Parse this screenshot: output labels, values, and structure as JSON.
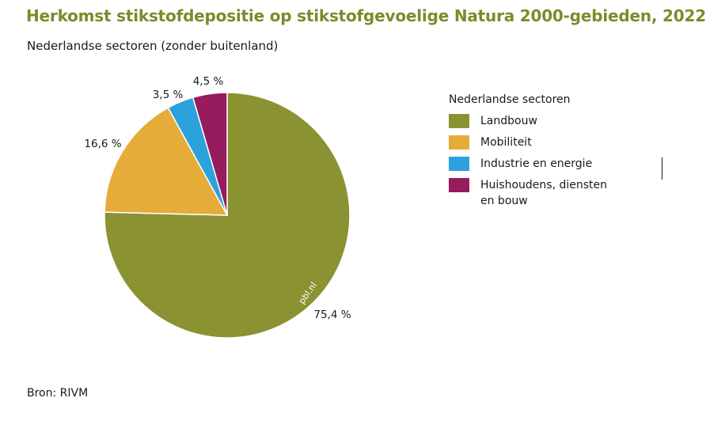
{
  "title": "Herkomst stikstofdepositie op stikstofgevoelige Natura 2000-gebieden, 2022",
  "subtitle": "Nederlandse sectoren (zonder buitenland)",
  "source": "Bron: RIVM",
  "watermark": "pbl.nl",
  "legend": {
    "title": "Nederlandse sectoren"
  },
  "chart_data": {
    "type": "pie",
    "title": "Herkomst stikstofdepositie op stikstofgevoelige Natura 2000-gebieden, 2022",
    "subtitle": "Nederlandse sectoren (zonder buitenland)",
    "legend_position": "right",
    "slices": [
      {
        "name": "Landbouw",
        "value": 75.4,
        "label": "75,4 %",
        "color": "#8b9232"
      },
      {
        "name": "Mobiliteit",
        "value": 16.6,
        "label": "16,6 %",
        "color": "#e5ac3a"
      },
      {
        "name": "Industrie en energie",
        "value": 3.5,
        "label": "3,5 %",
        "color": "#2ca1dc"
      },
      {
        "name": "Huishoudens, diensten en bouw",
        "value": 4.5,
        "label": "4,5 %",
        "color": "#961c5d"
      }
    ]
  }
}
